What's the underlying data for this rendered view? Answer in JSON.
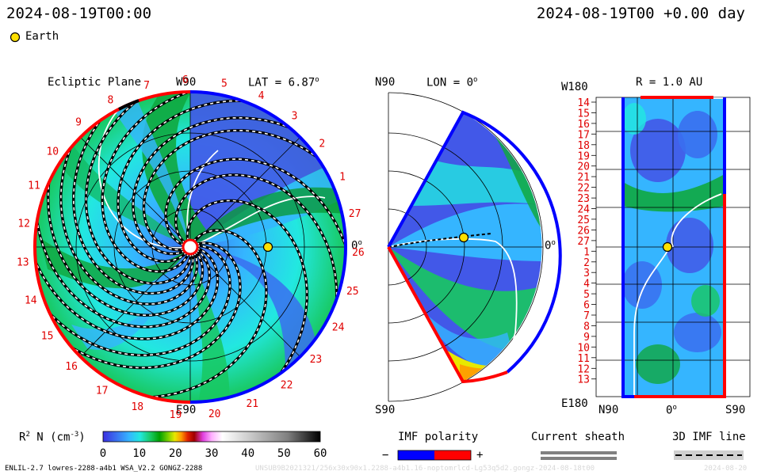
{
  "header": {
    "left_time": "2024-08-19T00:00",
    "right_time": "2024-08-19T00 +0.00 day",
    "legend_earth": "Earth"
  },
  "ecliptic": {
    "title": "Ecliptic Plane",
    "top_label": "W90",
    "bottom_label": "E90",
    "right_label": "0",
    "lat_label": "LAT = 6.87",
    "degree_marker": "o",
    "ring_numbers": [
      "13",
      "14",
      "15",
      "16",
      "17",
      "18",
      "19",
      "20",
      "21",
      "22",
      "23",
      "24",
      "25",
      "26",
      "27",
      "1",
      "2",
      "3",
      "4",
      "5",
      "6",
      "7",
      "8",
      "9",
      "10",
      "11",
      "12"
    ]
  },
  "meridional": {
    "top_label": "N90",
    "bottom_label": "S90",
    "lon_label": "LON = 0",
    "right_label": "0",
    "degree_marker": "o"
  },
  "radial": {
    "title": "R = 1.0 AU",
    "corner_top": "W180",
    "corner_bottom": "E180",
    "bottom_left": "N90",
    "bottom_mid": "0",
    "bottom_right": "S90",
    "rotation_labels": [
      "14",
      "15",
      "16",
      "17",
      "18",
      "19",
      "20",
      "21",
      "22",
      "23",
      "24",
      "25",
      "26",
      "27",
      "1",
      "2",
      "3",
      "4",
      "5",
      "6",
      "7",
      "8",
      "9",
      "10",
      "11",
      "12",
      "13"
    ]
  },
  "colorbar": {
    "label_prefix": "R",
    "label_sup": "2",
    "label_mid": " N (cm",
    "label_exp": "-3",
    "label_end": ")",
    "ticks": [
      "0",
      "10",
      "20",
      "30",
      "40",
      "50",
      "60"
    ]
  },
  "legends": {
    "imf_polarity": "IMF polarity",
    "minus": "−",
    "plus": "+",
    "current_sheath": "Current sheath",
    "imf_line": "3D IMF line"
  },
  "footer": {
    "model": "ENLIL-2.7 lowres-2288-a4b1 WSA_V2.2 GONGZ-2288",
    "run_id": "UNSUB9B2021321/256x30x90x1.2288-a4b1.16-noptomrlcd-Lg53q5d2.gongz-2024-08-18t00",
    "trailing": "2024-08-20"
  },
  "chart_data": {
    "type": "heatmap",
    "quantity": "R^2 N (cm^-3)",
    "colorbar_range": [
      0,
      60
    ],
    "colorbar_ticks": [
      0,
      10,
      20,
      30,
      40,
      50,
      60
    ],
    "colors": [
      "#3b2fe0",
      "#3a6ff0",
      "#35b5ff",
      "#22e8e0",
      "#18c860",
      "#00a000",
      "#7ad000",
      "#e8e800",
      "#ff9a00",
      "#e02000",
      "#a00000",
      "#e040e0",
      "#ffb0ff",
      "#ffffff",
      "#c0c0c0",
      "#808080",
      "#404040",
      "#000000"
    ],
    "imf_polarity_colors": {
      "negative": "#0000ff",
      "positive": "#ff0000"
    },
    "earth": {
      "date": "2024-08-19T00:00",
      "r_au": 1.0,
      "lon_deg": 0,
      "lat_deg": 6.87
    },
    "panels": [
      "Ecliptic Plane",
      "LON = 0 meridional cut",
      "R = 1.0 AU sphere"
    ]
  }
}
